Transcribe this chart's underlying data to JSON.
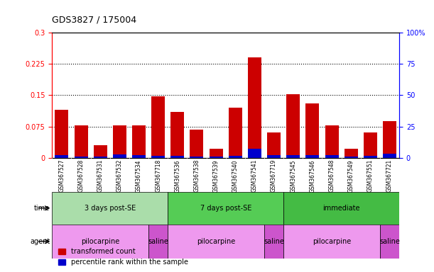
{
  "title": "GDS3827 / 175004",
  "samples": [
    "GSM367527",
    "GSM367528",
    "GSM367531",
    "GSM367532",
    "GSM367534",
    "GSM367718",
    "GSM367536",
    "GSM367538",
    "GSM367539",
    "GSM367540",
    "GSM367541",
    "GSM367719",
    "GSM367545",
    "GSM367546",
    "GSM367548",
    "GSM367549",
    "GSM367551",
    "GSM367721"
  ],
  "red_values": [
    0.115,
    0.077,
    0.03,
    0.077,
    0.078,
    0.147,
    0.11,
    0.068,
    0.022,
    0.12,
    0.24,
    0.06,
    0.152,
    0.13,
    0.078,
    0.022,
    0.06,
    0.088
  ],
  "blue_values": [
    0.006,
    0.003,
    0.003,
    0.008,
    0.007,
    0.005,
    0.004,
    0.003,
    0.003,
    0.004,
    0.022,
    0.006,
    0.006,
    0.006,
    0.006,
    0.003,
    0.004,
    0.009
  ],
  "ylim_left": [
    0,
    0.3
  ],
  "ylim_right": [
    0,
    100
  ],
  "yticks_left": [
    0,
    0.075,
    0.15,
    0.225,
    0.3
  ],
  "yticks_right": [
    0,
    25,
    50,
    75,
    100
  ],
  "ytick_labels_left": [
    "0",
    "0.075",
    "0.15",
    "0.225",
    "0.3"
  ],
  "ytick_labels_right": [
    "0",
    "25",
    "50",
    "75",
    "100%"
  ],
  "hlines": [
    0.075,
    0.15,
    0.225
  ],
  "bar_color_red": "#cc0000",
  "bar_color_blue": "#0000cc",
  "bg_color": "#ffffff",
  "time_groups": [
    {
      "label": "3 days post-SE",
      "start": 0,
      "end": 6,
      "color": "#aaddaa"
    },
    {
      "label": "7 days post-SE",
      "start": 6,
      "end": 12,
      "color": "#55cc55"
    },
    {
      "label": "immediate",
      "start": 12,
      "end": 18,
      "color": "#44bb44"
    }
  ],
  "agent_groups": [
    {
      "label": "pilocarpine",
      "start": 0,
      "end": 5,
      "color": "#ee99ee"
    },
    {
      "label": "saline",
      "start": 5,
      "end": 6,
      "color": "#cc55cc"
    },
    {
      "label": "pilocarpine",
      "start": 6,
      "end": 11,
      "color": "#ee99ee"
    },
    {
      "label": "saline",
      "start": 11,
      "end": 12,
      "color": "#cc55cc"
    },
    {
      "label": "pilocarpine",
      "start": 12,
      "end": 17,
      "color": "#ee99ee"
    },
    {
      "label": "saline",
      "start": 17,
      "end": 18,
      "color": "#cc55cc"
    }
  ],
  "legend_red": "transformed count",
  "legend_blue": "percentile rank within the sample",
  "xlabel_time": "time",
  "xlabel_agent": "agent",
  "xtick_bg": "#d8d8d8"
}
